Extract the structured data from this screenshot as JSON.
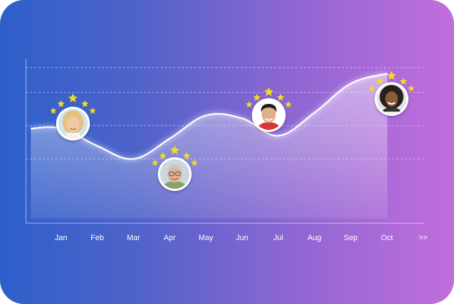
{
  "chart_data": {
    "type": "area",
    "categories": [
      "Jan",
      "Feb",
      "Mar",
      "Apr",
      "May",
      "Jun",
      "Jul",
      "Aug",
      "Sep",
      "Oct"
    ],
    "more_label": ">>",
    "values": [
      62,
      50,
      41,
      55,
      71,
      69,
      57,
      73,
      93,
      100
    ],
    "ylim": [
      0,
      110
    ],
    "grid": true,
    "title": "",
    "xlabel": "",
    "ylabel": "",
    "annotations": [
      {
        "category": "Jan",
        "type": "avatar",
        "icon": "woman-blonde-avatar",
        "stars": 5,
        "star_color": "#f5dc1f"
      },
      {
        "category": "Apr",
        "type": "avatar",
        "icon": "man-gray-hair-avatar",
        "stars": 5,
        "star_color": "#f5dc1f"
      },
      {
        "category": "Jul",
        "type": "avatar",
        "icon": "young-man-avatar",
        "stars": 5,
        "star_color": "#f5dc1f"
      },
      {
        "category": "Oct",
        "type": "avatar",
        "icon": "woman-curly-hair-avatar",
        "stars": 5,
        "star_color": "#f5dc1f"
      }
    ]
  },
  "colors": {
    "gradient_start": "#2d5fcb",
    "gradient_end": "#c26ddc",
    "line": "#ffffff",
    "star": "#f5dc1f"
  }
}
